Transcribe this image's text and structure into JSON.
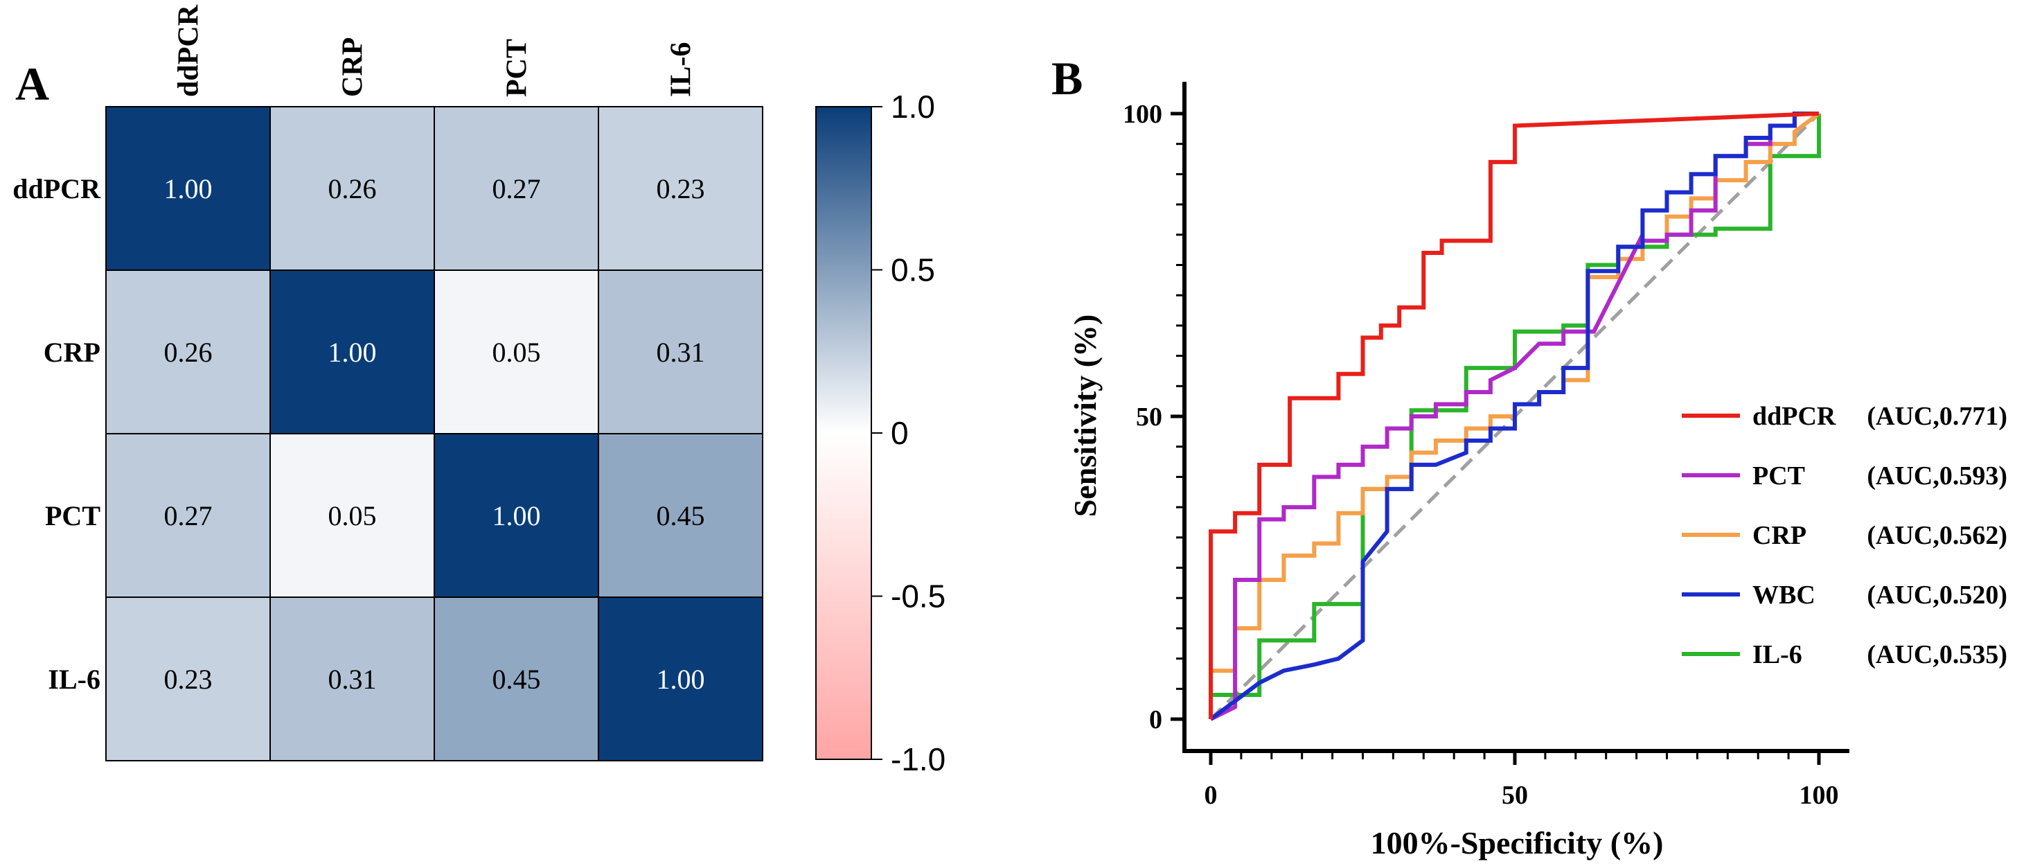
{
  "chart_data": [
    {
      "type": "heatmap",
      "panel_label": "A",
      "title": "",
      "columns": [
        "ddPCR",
        "CRP",
        "PCT",
        "IL-6"
      ],
      "rows": [
        "ddPCR",
        "CRP",
        "PCT",
        "IL-6"
      ],
      "values": [
        [
          1.0,
          0.26,
          0.27,
          0.23
        ],
        [
          0.26,
          1.0,
          0.05,
          0.31
        ],
        [
          0.27,
          0.05,
          1.0,
          0.45
        ],
        [
          0.23,
          0.31,
          0.45,
          1.0
        ]
      ],
      "value_labels": [
        [
          "1.00",
          "0.26",
          "0.27",
          "0.23"
        ],
        [
          "0.26",
          "1.00",
          "0.05",
          "0.31"
        ],
        [
          "0.27",
          "0.05",
          "1.00",
          "0.45"
        ],
        [
          "0.23",
          "0.31",
          "0.45",
          "1.00"
        ]
      ],
      "colorbar": {
        "range": [
          -1.0,
          1.0
        ],
        "ticks": [
          1.0,
          0.5,
          0,
          -0.5,
          -1.0
        ],
        "tick_labels": [
          "1.0",
          "0.5",
          "0",
          "-0.5",
          "-1.0"
        ],
        "colors": {
          "high": "#0a3d78",
          "mid": "#ffffff",
          "low": "#ffa5a5"
        }
      }
    },
    {
      "type": "line",
      "panel_label": "B",
      "title": "",
      "xlabel": "100%-Specificity (%)",
      "ylabel": "Sensitivity (%)",
      "xlim": [
        0,
        100
      ],
      "ylim": [
        0,
        100
      ],
      "xticks": [
        0,
        50,
        100
      ],
      "yticks": [
        0,
        50,
        100
      ],
      "legend_position": "right",
      "reference_line": {
        "x": [
          0,
          100
        ],
        "y": [
          0,
          100
        ],
        "color": "#a0a0a0",
        "style": "dashed"
      },
      "series": [
        {
          "name": "ddPCR",
          "auc_label": "(AUC,0.771)",
          "color": "#e8201a",
          "x": [
            0,
            0,
            4,
            4,
            8,
            8,
            13,
            13,
            21,
            21,
            25,
            25,
            28,
            28,
            31,
            31,
            35,
            35,
            38,
            38,
            46,
            46,
            50,
            50,
            100
          ],
          "y": [
            0,
            31,
            31,
            34,
            34,
            42,
            42,
            53,
            53,
            57,
            57,
            63,
            63,
            65,
            65,
            68,
            68,
            77,
            77,
            79,
            79,
            92,
            92,
            98,
            100
          ]
        },
        {
          "name": "PCT",
          "auc_label": "(AUC,0.593)",
          "color": "#b02ac8",
          "x": [
            0,
            4,
            4,
            8,
            8,
            12,
            12,
            17,
            17,
            21,
            21,
            25,
            25,
            29,
            29,
            33,
            33,
            37,
            37,
            42,
            42,
            46,
            46,
            50,
            54,
            58,
            58,
            63,
            67,
            71,
            71,
            75,
            75,
            79,
            79,
            83,
            83,
            88,
            88,
            92,
            92,
            96,
            96,
            100
          ],
          "y": [
            0,
            2,
            23,
            23,
            33,
            33,
            35,
            35,
            40,
            40,
            42,
            42,
            45,
            45,
            48,
            48,
            50,
            50,
            52,
            52,
            54,
            54,
            56,
            58,
            62,
            62,
            64,
            64,
            72,
            80,
            79,
            79,
            80,
            80,
            84,
            84,
            93,
            93,
            95,
            95,
            98,
            98,
            100,
            100
          ],
          "unused_note": ""
        },
        {
          "name": "CRP",
          "auc_label": "(AUC,0.562)",
          "color": "#f5a04a",
          "x": [
            0,
            0,
            4,
            4,
            8,
            8,
            12,
            12,
            17,
            17,
            21,
            21,
            25,
            25,
            29,
            29,
            33,
            33,
            37,
            37,
            42,
            42,
            46,
            46,
            50,
            50,
            54,
            54,
            58,
            58,
            62,
            62,
            67,
            67,
            71,
            71,
            75,
            75,
            79,
            79,
            83,
            83,
            88,
            88,
            92,
            92,
            96,
            96,
            100
          ],
          "y": [
            0,
            8,
            8,
            15,
            15,
            23,
            23,
            27,
            27,
            29,
            29,
            34,
            34,
            38,
            38,
            40,
            40,
            44,
            44,
            46,
            46,
            48,
            48,
            50,
            50,
            52,
            52,
            54,
            54,
            56,
            56,
            73,
            73,
            76,
            76,
            79,
            79,
            83,
            83,
            86,
            86,
            89,
            89,
            92,
            92,
            95,
            95,
            97,
            100
          ]
        },
        {
          "name": "WBC",
          "auc_label": "(AUC,0.520)",
          "color": "#1c2ccc",
          "x": [
            0,
            4,
            8,
            12,
            17,
            21,
            25,
            25,
            29,
            29,
            33,
            33,
            37,
            42,
            42,
            46,
            46,
            50,
            50,
            54,
            54,
            58,
            58,
            62,
            62,
            67,
            67,
            71,
            71,
            75,
            75,
            79,
            79,
            83,
            83,
            88,
            88,
            92,
            92,
            96,
            96,
            100
          ],
          "y": [
            0,
            3,
            6,
            8,
            9,
            10,
            13,
            26,
            31,
            38,
            38,
            42,
            42,
            44,
            46,
            46,
            48,
            48,
            52,
            52,
            54,
            54,
            58,
            58,
            74,
            74,
            78,
            78,
            84,
            84,
            87,
            87,
            90,
            90,
            93,
            93,
            96,
            96,
            98,
            98,
            100,
            100
          ]
        },
        {
          "name": "IL-6",
          "auc_label": "(AUC,0.535)",
          "color": "#2ab52a",
          "x": [
            0,
            0,
            8,
            8,
            17,
            17,
            25,
            25,
            33,
            33,
            42,
            42,
            50,
            50,
            58,
            58,
            62,
            62,
            67,
            67,
            75,
            75,
            83,
            83,
            92,
            92,
            96,
            96,
            100,
            100
          ],
          "y": [
            0,
            4,
            4,
            13,
            13,
            19,
            19,
            38,
            38,
            51,
            51,
            58,
            58,
            64,
            64,
            65,
            65,
            75,
            75,
            78,
            78,
            80,
            80,
            81,
            81,
            93,
            93,
            93,
            93,
            100
          ]
        }
      ]
    }
  ]
}
